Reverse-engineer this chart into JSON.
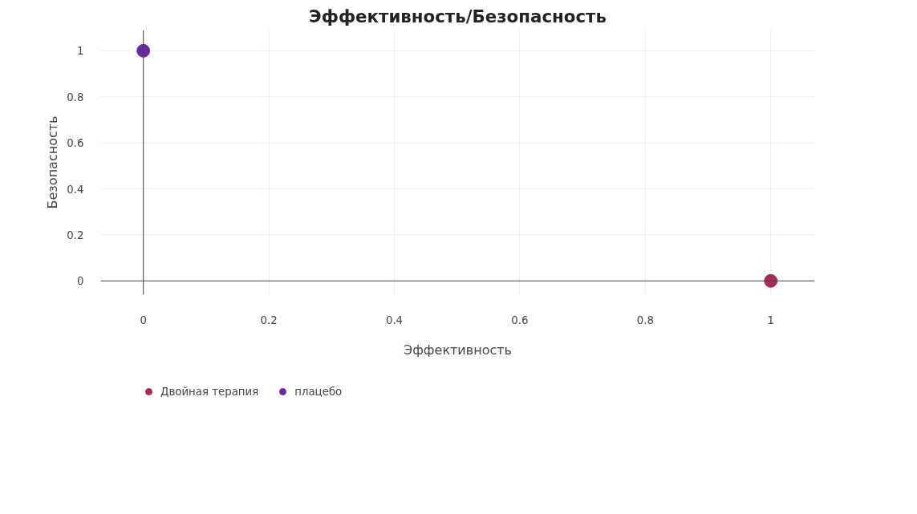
{
  "chart_data": {
    "type": "scatter",
    "title": "Эффективность/Безопасность",
    "xlabel": "Эффективность",
    "ylabel": "Безопасность",
    "series": [
      {
        "name": "Двойная терапия",
        "color": "#a8295a",
        "x": [
          1
        ],
        "values": [
          0
        ]
      },
      {
        "name": "плацебо",
        "color": "#6a2a9e",
        "x": [
          0
        ],
        "values": [
          1
        ]
      }
    ],
    "xlim": [
      -0.068,
      1.07
    ],
    "ylim": [
      -0.06,
      1.09
    ],
    "xticks": [
      0,
      0.2,
      0.4,
      0.6,
      0.8,
      1
    ],
    "yticks": [
      0,
      0.2,
      0.4,
      0.6,
      0.8,
      1
    ],
    "grid": true,
    "legend": "bottom left",
    "marker": "circle"
  }
}
